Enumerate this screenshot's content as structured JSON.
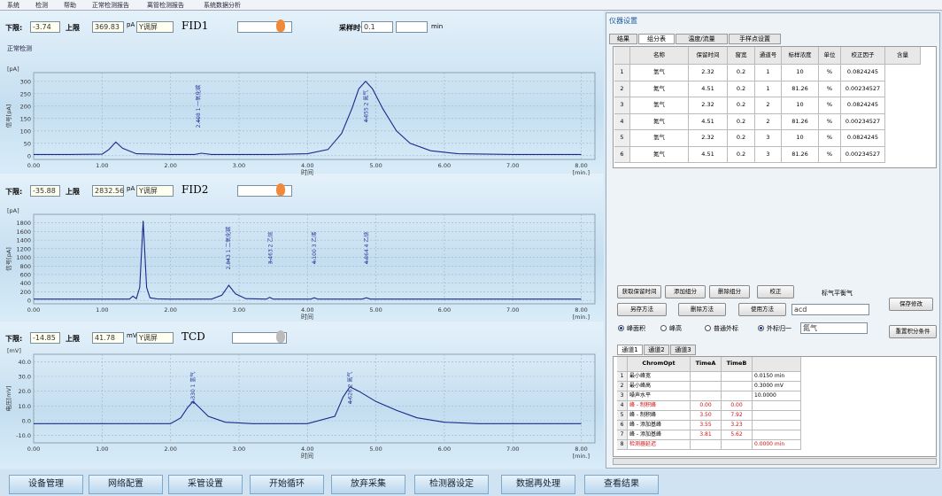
{
  "menu": [
    "系统",
    "检测",
    "帮助",
    "正常检测报告",
    "离管检测报告",
    "系统数据分析"
  ],
  "panels": [
    {
      "low_label": "下限:",
      "low": "-3.74",
      "high_label": "上限",
      "high": "369.83",
      "unit": "pA",
      "mode": "Y调屏",
      "detector": "FID1",
      "duration_label": "采样时长:",
      "duration": "0.1",
      "duration_unit": "min",
      "status": "正常检测"
    },
    {
      "low_label": "下限:",
      "low": "-35.88",
      "high_label": "上限",
      "high": "2832.56",
      "unit": "pA",
      "mode": "Y调屏",
      "detector": "FID2"
    },
    {
      "low_label": "下限:",
      "low": "-14.85",
      "high_label": "上限",
      "high": "41.78",
      "unit": "mV",
      "mode": "Y调屏",
      "detector": "TCD"
    }
  ],
  "chart_data": [
    {
      "type": "line",
      "y_label": "信号[pA]",
      "y_unit": "[pA]",
      "x_label": "时间",
      "x_unit": "[min.]",
      "color": "#1a2a8a",
      "x": [
        0,
        0.5,
        1.0,
        1.1,
        1.2,
        1.3,
        1.5,
        2.0,
        2.35,
        2.45,
        2.6,
        3.0,
        3.5,
        4.0,
        4.3,
        4.5,
        4.65,
        4.75,
        4.85,
        4.95,
        5.1,
        5.3,
        5.5,
        5.8,
        6.2,
        7,
        8
      ],
      "values": [
        5,
        5,
        6,
        25,
        55,
        30,
        8,
        5,
        5,
        10,
        5,
        5,
        5,
        8,
        25,
        90,
        190,
        270,
        300,
        270,
        190,
        100,
        50,
        20,
        8,
        5,
        5
      ],
      "xlim": [
        0,
        8.2
      ],
      "ylim": [
        -15,
        335
      ],
      "xticks": [
        {
          "value": 0,
          "label": "0.00"
        },
        {
          "value": 1,
          "label": "1.00"
        },
        {
          "value": 2,
          "label": "2.00"
        },
        {
          "value": 3,
          "label": "3.00"
        },
        {
          "value": 4,
          "label": "4.00"
        },
        {
          "value": 5,
          "label": "5.00"
        },
        {
          "value": 6,
          "label": "6.00"
        },
        {
          "value": 7,
          "label": "7.00"
        },
        {
          "value": 8,
          "label": "8.00"
        }
      ],
      "yticks": [
        0,
        50,
        100,
        150,
        200,
        250,
        300
      ],
      "annotations": [
        {
          "x": 2.408,
          "text": "2.408 1 一氧化碳"
        },
        {
          "x": 4.855,
          "text": "4.855 2 氮气"
        }
      ]
    },
    {
      "type": "line",
      "y_label": "信号[pA]",
      "y_unit": "[pA]",
      "x_label": "时间",
      "x_unit": "[min.]",
      "color": "#1a2a8a",
      "x": [
        0,
        0.5,
        1.0,
        1.4,
        1.45,
        1.5,
        1.55,
        1.6,
        1.65,
        1.7,
        1.8,
        2.0,
        2.6,
        2.75,
        2.85,
        2.95,
        3.1,
        3.4,
        3.45,
        3.5,
        4.05,
        4.1,
        4.15,
        4.8,
        4.86,
        4.92,
        5.5,
        8
      ],
      "values": [
        30,
        30,
        30,
        30,
        100,
        40,
        300,
        1850,
        300,
        60,
        35,
        30,
        30,
        120,
        350,
        150,
        40,
        30,
        70,
        30,
        30,
        60,
        30,
        30,
        60,
        30,
        30,
        30
      ],
      "xlim": [
        0,
        8.2
      ],
      "ylim": [
        -80,
        2000
      ],
      "xticks": [
        {
          "value": 0,
          "label": "0.00"
        },
        {
          "value": 1,
          "label": "1.00"
        },
        {
          "value": 2,
          "label": "2.00"
        },
        {
          "value": 3,
          "label": "3.00"
        },
        {
          "value": 4,
          "label": "4.00"
        },
        {
          "value": 5,
          "label": "5.00"
        },
        {
          "value": 6,
          "label": "6.00"
        },
        {
          "value": 7,
          "label": "7.00"
        },
        {
          "value": 8,
          "label": "8.00"
        }
      ],
      "yticks": [
        0,
        200,
        400,
        600,
        800,
        1000,
        1200,
        1400,
        1600,
        1800
      ],
      "annotations": [
        {
          "x": 2.843,
          "text": "2.843 1 二氧化碳"
        },
        {
          "x": 3.463,
          "text": "3.463 2 乙烷"
        },
        {
          "x": 4.1,
          "text": "4.100 3 乙烯"
        },
        {
          "x": 4.864,
          "text": "4.864 4 乙炔"
        }
      ]
    },
    {
      "type": "line",
      "y_label": "电压[mV]",
      "y_unit": "[mV]",
      "x_label": "时间",
      "x_unit": "[min.]",
      "color": "#1a2a8a",
      "x": [
        0,
        1.0,
        2.0,
        2.15,
        2.25,
        2.33,
        2.42,
        2.55,
        2.8,
        3.2,
        4.0,
        4.4,
        4.52,
        4.62,
        4.75,
        5.0,
        5.3,
        5.6,
        6.0,
        6.5,
        8
      ],
      "values": [
        -2,
        -2,
        -2,
        2,
        9,
        13,
        9,
        3,
        -1,
        -2,
        -2,
        3,
        16,
        23,
        20,
        13,
        7,
        2,
        -1,
        -2,
        -2
      ],
      "xlim": [
        0,
        8.2
      ],
      "ylim": [
        -15,
        45
      ],
      "xticks": [
        {
          "value": 0,
          "label": "0.00"
        },
        {
          "value": 1,
          "label": "1.00"
        },
        {
          "value": 2,
          "label": "2.00"
        },
        {
          "value": 3,
          "label": "3.00"
        },
        {
          "value": 4,
          "label": "4.00"
        },
        {
          "value": 5,
          "label": "5.00"
        },
        {
          "value": 6,
          "label": "6.00"
        },
        {
          "value": 7,
          "label": "7.00"
        },
        {
          "value": 8,
          "label": "8.00"
        }
      ],
      "yticks": [
        {
          "value": -10,
          "label": "-10.0"
        },
        {
          "value": 0,
          "label": "0.0"
        },
        {
          "value": 10,
          "label": "10.0"
        },
        {
          "value": 20,
          "label": "20.0"
        },
        {
          "value": 30,
          "label": "30.0"
        },
        {
          "value": 40,
          "label": "40.0"
        }
      ],
      "annotations": [
        {
          "x": 2.33,
          "text": "2.330 1 氢气"
        },
        {
          "x": 4.626,
          "text": "4.626 2 氮气"
        }
      ]
    }
  ],
  "buttons": [
    "设备管理",
    "网络配置",
    "采管设置",
    "开始循环",
    "放弃采集",
    "检测器设定",
    "数据再处理",
    "查看结果"
  ],
  "settings": {
    "title": "仪器设置",
    "tabs": [
      "结果",
      "组分表",
      "温度/流量",
      "手样点设置"
    ],
    "table": {
      "columns": [
        "名称",
        "保留时间",
        "窗宽(min)",
        "通道号",
        "标样浓度",
        "单位",
        "校正因子",
        "含量"
      ],
      "rows": [
        [
          "1",
          "氢气",
          "2.32",
          "0.2",
          "1",
          "10",
          "%",
          "0.0824245"
        ],
        [
          "2",
          "氮气",
          "4.51",
          "0.2",
          "1",
          "81.26",
          "%",
          "0.00234527"
        ],
        [
          "3",
          "氢气",
          "2.32",
          "0.2",
          "2",
          "10",
          "%",
          "0.0824245"
        ],
        [
          "4",
          "氮气",
          "4.51",
          "0.2",
          "2",
          "81.26",
          "%",
          "0.00234527"
        ],
        [
          "5",
          "氢气",
          "2.32",
          "0.2",
          "3",
          "10",
          "%",
          "0.0824245"
        ],
        [
          "6",
          "氮气",
          "4.51",
          "0.2",
          "3",
          "81.26",
          "%",
          "0.00234527"
        ]
      ]
    },
    "row1_buttons": [
      "获取保留时间",
      "添加组分",
      "删除组分",
      "校正"
    ],
    "balance_label": "标气平衡气",
    "row2_buttons": [
      "另存方法",
      "删除方法",
      "使用方法"
    ],
    "method": "acd",
    "save": "保存修改",
    "radios": [
      "峰面积",
      "峰高",
      "普通外标",
      "外标归一"
    ],
    "balance_gas": "氮气",
    "reset": "重置积分条件",
    "channel_tabs": [
      "通道1",
      "通道2",
      "通道3"
    ],
    "integ": {
      "columns": [
        "ChromOpt",
        "TimeA",
        "TimeB"
      ],
      "rows": [
        {
          "n": "1",
          "name": "最小峰宽",
          "value": "0.0150 min"
        },
        {
          "n": "2",
          "name": "最小峰高",
          "value": "0.3000 mV"
        },
        {
          "n": "3",
          "name": "噪声水平",
          "value": "10.0000"
        },
        {
          "n": "4",
          "name": "峰 - 制积峰",
          "a": "0.00",
          "b": "0.00"
        },
        {
          "n": "5",
          "name": "峰 - 制积峰",
          "a": "3.50",
          "b": "7.92"
        },
        {
          "n": "6",
          "name": "峰 - 添加基峰",
          "a": "3.55",
          "b": "3.23"
        },
        {
          "n": "7",
          "name": "峰 - 添加基峰",
          "a": "3.81",
          "b": "5.62"
        },
        {
          "n": "8",
          "name": "检测器延迟",
          "value": "0.0000 min"
        }
      ]
    }
  }
}
